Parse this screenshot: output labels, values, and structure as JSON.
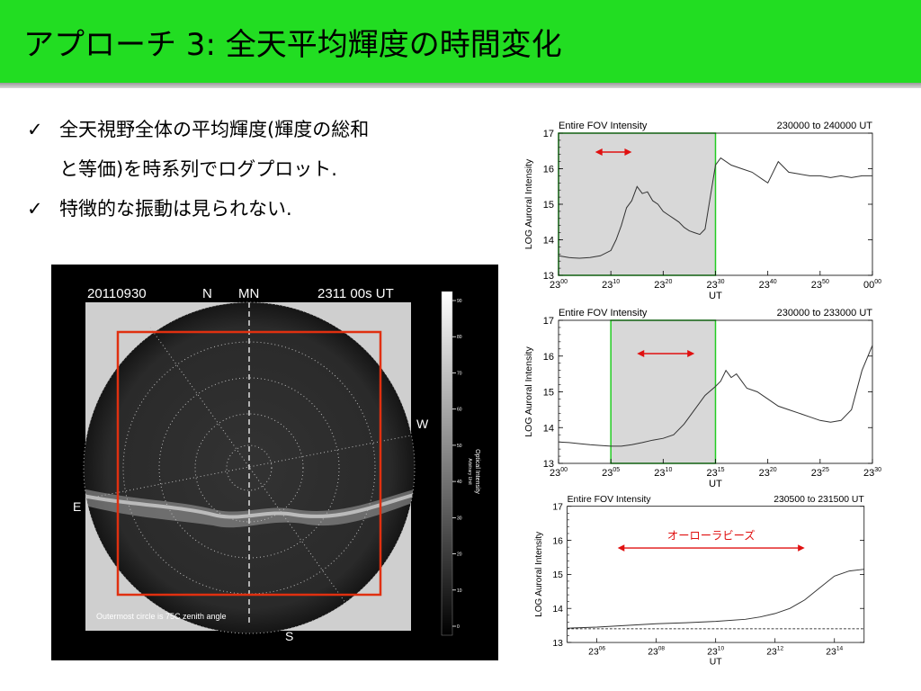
{
  "slide": {
    "title": "アプローチ 3: 全天平均輝度の時間変化",
    "bullets": [
      {
        "check": "✓",
        "lines": [
          "全天視野全体の平均輝度(輝度の総和",
          "と等価)を時系列でログプロット."
        ]
      },
      {
        "check": "✓",
        "lines": [
          "特徴的な振動は見られない."
        ]
      }
    ]
  },
  "allsky": {
    "date": "20110930",
    "north": "N",
    "mn": "MN",
    "time": "2311 00s UT",
    "east": "E",
    "west": "W",
    "south": "S",
    "caption": "Outermost circle is 75C zenith angle",
    "colorbar_title": "Optical Intensity",
    "colorbar_unit": "Arbitrary Unit",
    "colorbar_ticks": [
      "90",
      "80",
      "70",
      "60",
      "50",
      "40",
      "30",
      "20",
      "10",
      "0"
    ],
    "box_color": "#e03010"
  },
  "colors": {
    "title_bg": "#22dd22",
    "highlight_border": "#22cc22",
    "arrow": "#e01010",
    "shade": "#d8d8d8"
  },
  "chart_data": [
    {
      "type": "line",
      "title": "Entire FOV Intensity",
      "range_label": "230000 to 240000 UT",
      "xlabel": "UT",
      "ylabel": "LOG Auroral Intensity",
      "ylim": [
        13,
        17
      ],
      "yticks": [
        "13",
        "14",
        "15",
        "16",
        "17"
      ],
      "xticks": [
        {
          "base": "23",
          "sup": "00"
        },
        {
          "base": "23",
          "sup": "10"
        },
        {
          "base": "23",
          "sup": "20"
        },
        {
          "base": "23",
          "sup": "30"
        },
        {
          "base": "23",
          "sup": "40"
        },
        {
          "base": "23",
          "sup": "50"
        },
        {
          "base": "00",
          "sup": "00"
        }
      ],
      "xlim": [
        0,
        60
      ],
      "x_unit": "minutes after 23:00 UT",
      "highlight": [
        0,
        30
      ],
      "arrow": [
        7,
        14
      ],
      "series": [
        {
          "x": [
            0,
            2,
            4,
            6,
            8,
            10,
            11,
            12,
            13,
            14,
            15,
            16,
            17,
            18,
            19,
            20,
            21,
            22,
            23,
            24,
            25,
            26,
            27,
            28,
            29,
            30,
            31,
            33,
            35,
            37,
            38,
            39,
            40,
            42,
            44,
            46,
            48,
            50,
            52,
            54,
            56,
            58,
            60
          ],
          "y": [
            13.55,
            13.5,
            13.48,
            13.5,
            13.55,
            13.7,
            14.0,
            14.4,
            14.9,
            15.1,
            15.5,
            15.3,
            15.35,
            15.1,
            15.0,
            14.8,
            14.7,
            14.6,
            14.5,
            14.35,
            14.25,
            14.2,
            14.15,
            14.3,
            15.2,
            16.1,
            16.3,
            16.1,
            16.0,
            15.9,
            15.8,
            15.7,
            15.6,
            16.2,
            15.9,
            15.85,
            15.8,
            15.8,
            15.75,
            15.8,
            15.75,
            15.8,
            15.8
          ]
        }
      ]
    },
    {
      "type": "line",
      "title": "Entire FOV Intensity",
      "range_label": "230000 to 233000 UT",
      "xlabel": "UT",
      "ylabel": "LOG Auroral Intensity",
      "ylim": [
        13,
        17
      ],
      "yticks": [
        "13",
        "14",
        "15",
        "16",
        "17"
      ],
      "xticks": [
        {
          "base": "23",
          "sup": "00"
        },
        {
          "base": "23",
          "sup": "05"
        },
        {
          "base": "23",
          "sup": "10"
        },
        {
          "base": "23",
          "sup": "15"
        },
        {
          "base": "23",
          "sup": "20"
        },
        {
          "base": "23",
          "sup": "25"
        },
        {
          "base": "23",
          "sup": "30"
        }
      ],
      "xlim": [
        0,
        30
      ],
      "x_unit": "minutes after 23:00 UT",
      "highlight": [
        5,
        15
      ],
      "arrow": [
        7.5,
        13
      ],
      "series": [
        {
          "x": [
            0,
            1,
            2,
            3,
            4,
            5,
            6,
            7,
            8,
            9,
            10,
            11,
            12,
            13,
            14,
            15,
            15.5,
            16,
            16.5,
            17,
            17.5,
            18,
            19,
            20,
            21,
            22,
            23,
            24,
            25,
            26,
            27,
            28,
            29,
            30
          ],
          "y": [
            13.6,
            13.58,
            13.55,
            13.52,
            13.5,
            13.48,
            13.48,
            13.52,
            13.58,
            13.65,
            13.7,
            13.8,
            14.1,
            14.5,
            14.9,
            15.15,
            15.3,
            15.6,
            15.4,
            15.5,
            15.3,
            15.1,
            15.0,
            14.8,
            14.6,
            14.5,
            14.4,
            14.3,
            14.2,
            14.15,
            14.2,
            14.5,
            15.6,
            16.3
          ]
        }
      ]
    },
    {
      "type": "line",
      "title": "Entire FOV Intensity",
      "range_label": "230500 to 231500 UT",
      "xlabel": "UT",
      "ylabel": "LOG Auroral Intensity",
      "ylim": [
        13,
        17
      ],
      "yticks": [
        "13",
        "14",
        "15",
        "16",
        "17"
      ],
      "xticks": [
        {
          "base": "23",
          "sup": "06"
        },
        {
          "base": "23",
          "sup": "08"
        },
        {
          "base": "23",
          "sup": "10"
        },
        {
          "base": "23",
          "sup": "12"
        },
        {
          "base": "23",
          "sup": "14"
        }
      ],
      "xlim": [
        5,
        15
      ],
      "x_unit": "minutes after 23:00 UT",
      "annotation": "オーローラビーズ",
      "arrow": [
        6.7,
        13
      ],
      "baseline": 13.4,
      "series": [
        {
          "x": [
            5,
            6,
            7,
            8,
            9,
            10,
            11,
            11.5,
            12,
            12.5,
            13,
            13.5,
            14,
            14.5,
            15
          ],
          "y": [
            13.42,
            13.45,
            13.5,
            13.55,
            13.58,
            13.62,
            13.68,
            13.75,
            13.85,
            14.0,
            14.25,
            14.6,
            14.95,
            15.1,
            15.15
          ]
        }
      ]
    }
  ]
}
